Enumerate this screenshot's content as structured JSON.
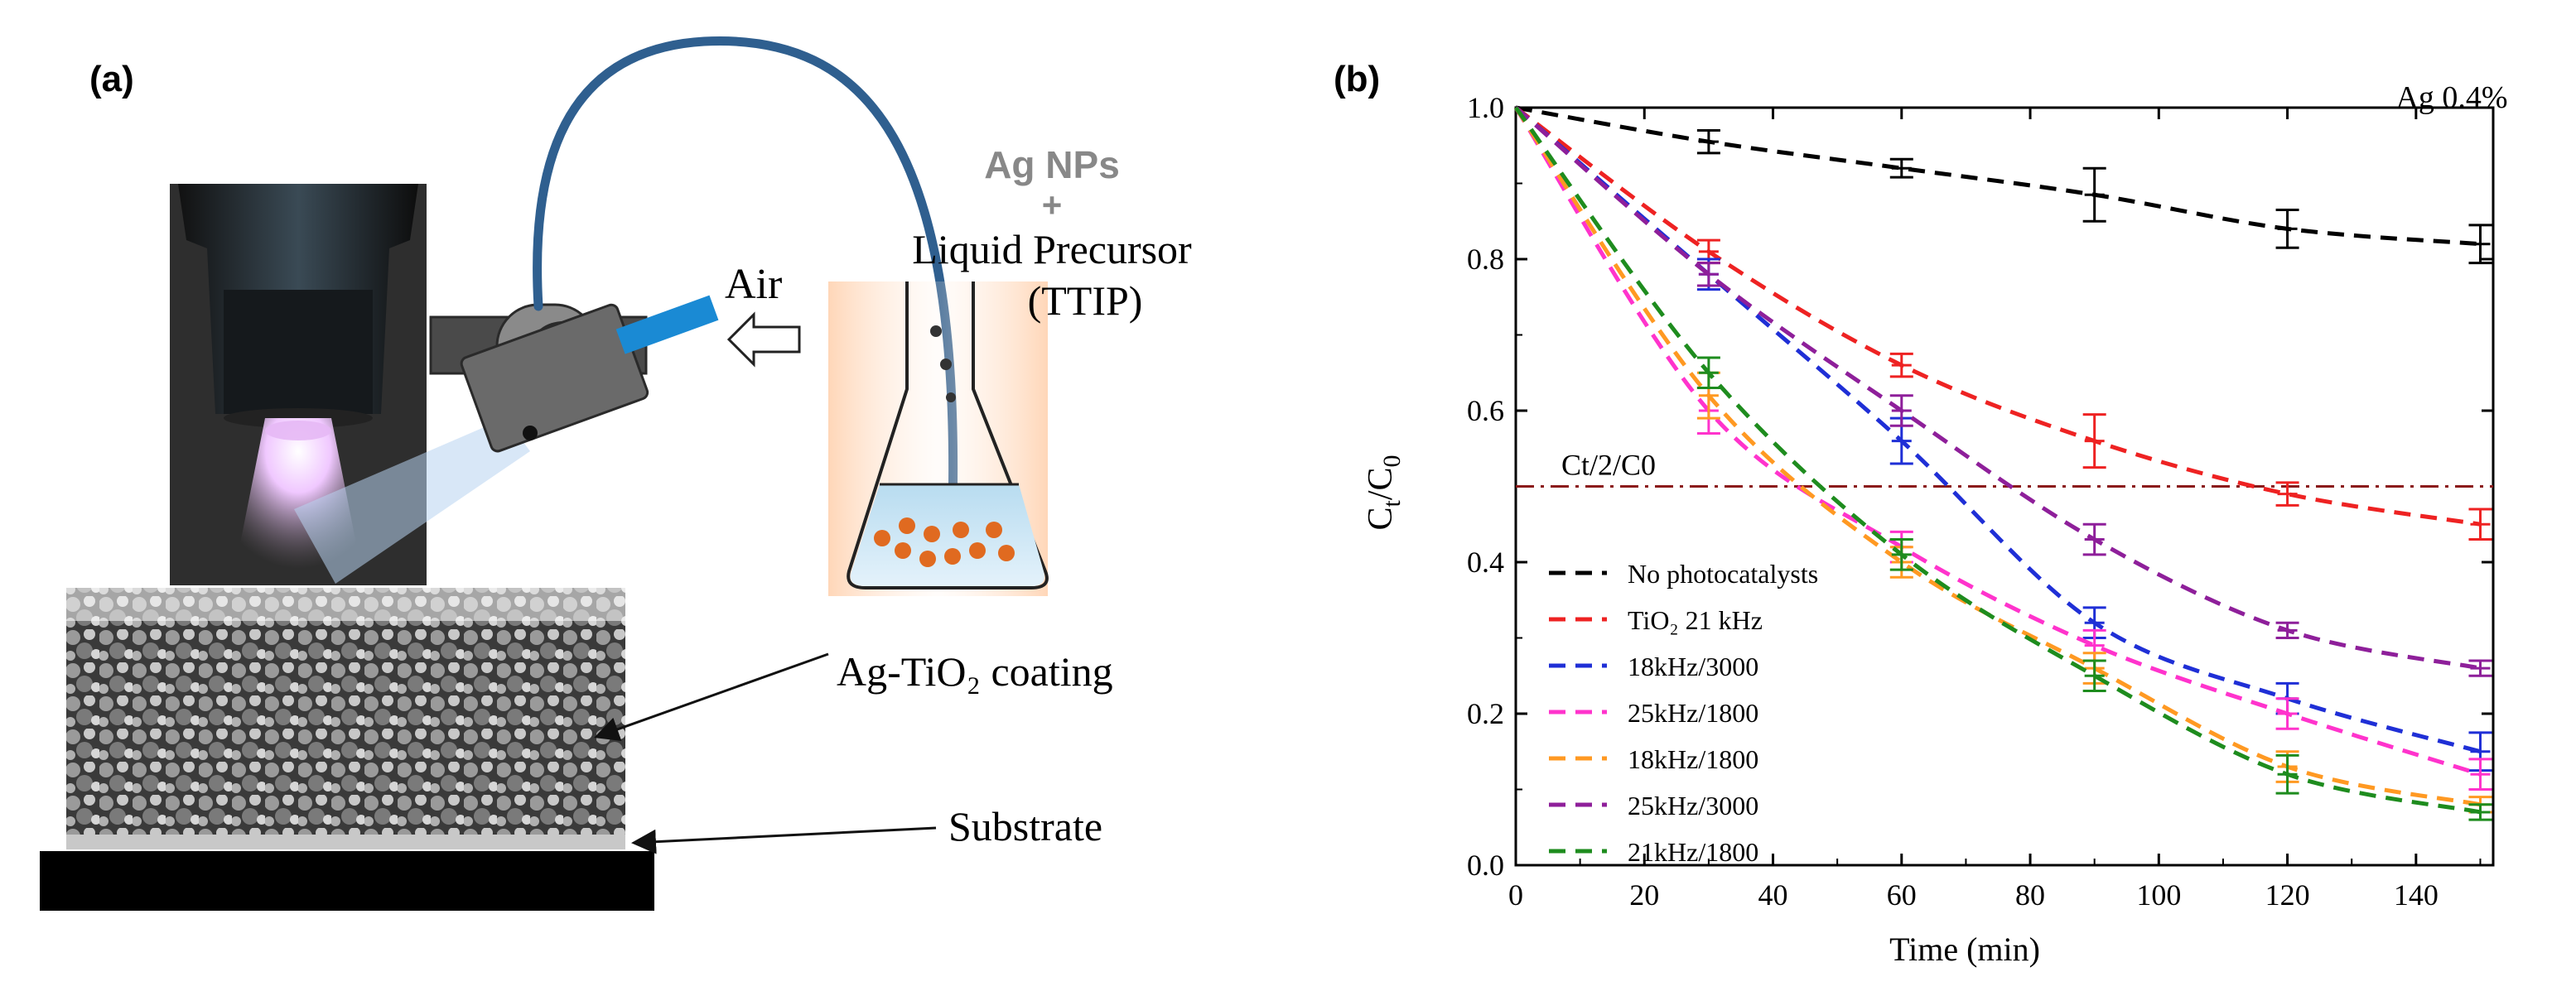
{
  "panel_a": {
    "label": "(a)",
    "source_title": "Ag NPs",
    "source_plus": "+",
    "precursor_line1": "Liquid Precursor",
    "precursor_line2": "(TTIP)",
    "air_label": "Air",
    "coating_label": "Ag-TiO₂ coating",
    "substrate_label": "Substrate",
    "colors": {
      "tube": "#2f5f8f",
      "nozzle": "#1a8ad4",
      "droplet": "#e06a20",
      "plasma": "#e6b8f5"
    }
  },
  "panel_b": {
    "label": "(b)"
  },
  "chart_data": {
    "type": "line",
    "xlabel": "Time (min)",
    "ylabel": "Ct/C0",
    "xlim": [
      0,
      152
    ],
    "ylim": [
      0,
      1.0
    ],
    "xticks": [
      "0",
      "20",
      "40",
      "60",
      "80",
      "100",
      "120",
      "140"
    ],
    "yticks": [
      "0.0",
      "0.2",
      "0.4",
      "0.6",
      "0.8",
      "1.0"
    ],
    "annotation": "Ag 0.4%",
    "reference_line": {
      "label": "Ct/2/C0",
      "y": 0.5,
      "color": "#8b1a1a"
    },
    "legend_position": "bottom-left",
    "series": [
      {
        "name": "No photocatalysts",
        "color": "#000000",
        "x": [
          0,
          30,
          60,
          90,
          120,
          150
        ],
        "y": [
          1.0,
          0.955,
          0.92,
          0.885,
          0.84,
          0.82
        ],
        "err": [
          0,
          0.015,
          0.012,
          0.035,
          0.025,
          0.025
        ]
      },
      {
        "name": "TiO₂ 21 kHz",
        "color": "#ee2222",
        "x": [
          0,
          30,
          60,
          90,
          120,
          150
        ],
        "y": [
          1.0,
          0.81,
          0.66,
          0.56,
          0.49,
          0.45
        ],
        "err": [
          0,
          0.015,
          0.015,
          0.035,
          0.015,
          0.02
        ]
      },
      {
        "name": "18kHz/3000",
        "color": "#1f2fd6",
        "x": [
          0,
          30,
          60,
          90,
          120,
          150
        ],
        "y": [
          1.0,
          0.78,
          0.56,
          0.32,
          0.22,
          0.15
        ],
        "err": [
          0,
          0.02,
          0.03,
          0.02,
          0.02,
          0.025
        ]
      },
      {
        "name": "25kHz/1800",
        "color": "#ff33cc",
        "x": [
          0,
          30,
          60,
          90,
          120,
          150
        ],
        "y": [
          1.0,
          0.6,
          0.42,
          0.29,
          0.2,
          0.12
        ],
        "err": [
          0,
          0.03,
          0.02,
          0.02,
          0.02,
          0.02
        ]
      },
      {
        "name": "18kHz/1800",
        "color": "#ff9922",
        "x": [
          0,
          30,
          60,
          90,
          120,
          150
        ],
        "y": [
          1.0,
          0.62,
          0.4,
          0.26,
          0.13,
          0.08
        ],
        "err": [
          0,
          0.03,
          0.02,
          0.02,
          0.02,
          0.01
        ]
      },
      {
        "name": "25kHz/3000",
        "color": "#8e1f9a",
        "x": [
          0,
          30,
          60,
          90,
          120,
          150
        ],
        "y": [
          1.0,
          0.78,
          0.6,
          0.43,
          0.31,
          0.26
        ],
        "err": [
          0,
          0.015,
          0.02,
          0.02,
          0.01,
          0.01
        ]
      },
      {
        "name": "21kHz/1800",
        "color": "#1e8c1e",
        "x": [
          0,
          30,
          60,
          90,
          120,
          150
        ],
        "y": [
          1.0,
          0.65,
          0.41,
          0.25,
          0.12,
          0.07
        ],
        "err": [
          0,
          0.02,
          0.02,
          0.02,
          0.025,
          0.01
        ]
      }
    ]
  }
}
